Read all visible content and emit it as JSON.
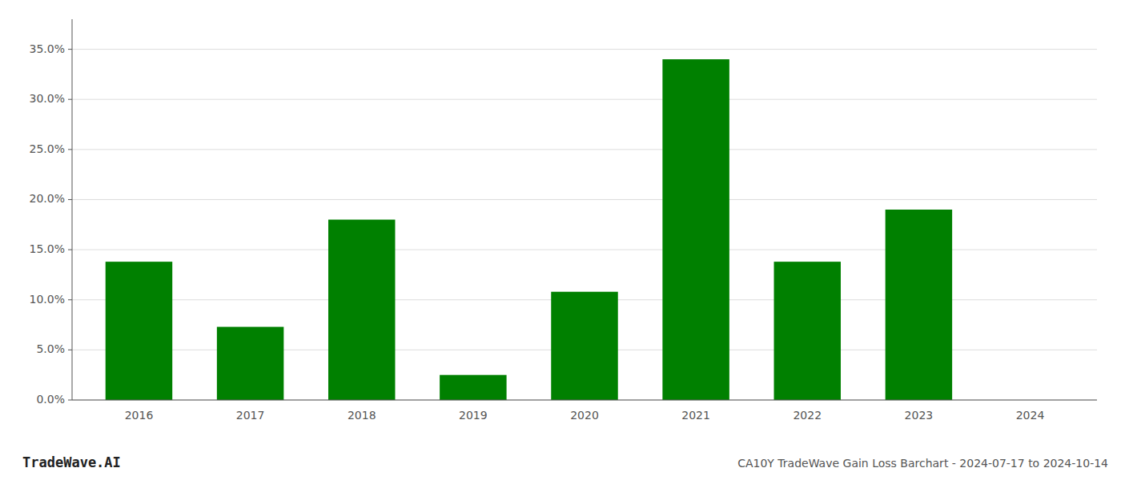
{
  "chart_data": {
    "type": "bar",
    "title": "CA10Y TradeWave Gain Loss Barchart - 2024-07-17 to 2024-10-14",
    "annotations": [
      "TradeWave.AI"
    ],
    "categories": [
      "2016",
      "2017",
      "2018",
      "2019",
      "2020",
      "2021",
      "2022",
      "2023",
      "2024"
    ],
    "values": [
      0.138,
      0.073,
      0.18,
      0.025,
      0.108,
      0.34,
      0.138,
      0.19,
      0.0
    ],
    "color": "#008000",
    "ylim": [
      0.0,
      0.38
    ],
    "yticks": [
      {
        "value": 0.0,
        "label": "0.0%"
      },
      {
        "value": 0.05,
        "label": "5.0%"
      },
      {
        "value": 0.1,
        "label": "10.0%"
      },
      {
        "value": 0.15,
        "label": "15.0%"
      },
      {
        "value": 0.2,
        "label": "20.0%"
      },
      {
        "value": 0.25,
        "label": "25.0%"
      },
      {
        "value": 0.3,
        "label": "30.0%"
      },
      {
        "value": 0.35,
        "label": "35.0%"
      }
    ],
    "grid": true
  }
}
